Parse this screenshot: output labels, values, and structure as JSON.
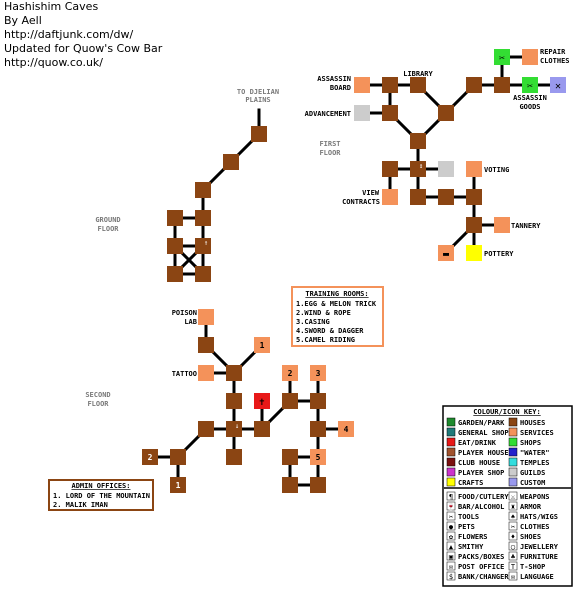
{
  "header": {
    "title": "Hashishim Caves",
    "author": "By Aell",
    "url1": "http://daftjunk.com/dw/",
    "updated": "Updated for Quow's Cow Bar",
    "url2": "http://quow.co.uk/"
  },
  "floors": {
    "first": [
      "FIRST",
      "FLOOR"
    ],
    "ground": [
      "GROUND",
      "FLOOR"
    ],
    "second": [
      "SECOND",
      "FLOOR"
    ],
    "djelian": [
      "TO DJELIAN",
      "PLAINS"
    ]
  },
  "labels": {
    "assassin_board": [
      "ASSASSIN",
      "BOARD"
    ],
    "library": "LIBRARY",
    "repair_clothes": [
      "REPAIR",
      "CLOTHES"
    ],
    "assassin_goods": [
      "ASSASSIN",
      "GOODS"
    ],
    "advancement": "ADVANCEMENT",
    "voting": "VOTING",
    "view_contracts": [
      "VIEW",
      "CONTRACTS"
    ],
    "tannery": "TANNERY",
    "pottery": "POTTERY",
    "poison_lab": [
      "POISON",
      "LAB"
    ],
    "tattoo": "TATTOO",
    "n1": "1",
    "n2": "2",
    "n3": "3",
    "n4": "4",
    "n5": "5"
  },
  "training": {
    "title": "TRAINING ROOMS:",
    "items": [
      "1.EGG & MELON TRICK",
      "2.WIND & ROPE",
      "3.CASING",
      "4.SWORD & DAGGER",
      "5.CAMEL RIDING"
    ]
  },
  "admin": {
    "title": "ADMIN OFFICES:",
    "items": [
      "1. LORD OF THE MOUNTAIN",
      "2. MALIK IMAN"
    ]
  },
  "key": {
    "title": "COLOUR/ICON KEY:",
    "colours": [
      {
        "label": "GARDEN/PARK",
        "color": "#1e8a2e"
      },
      {
        "label": "HOUSES",
        "color": "#8b4513"
      },
      {
        "label": "GENERAL SHOP",
        "color": "#1f7a7a"
      },
      {
        "label": "SERVICES",
        "color": "#f4925a"
      },
      {
        "label": "EAT/DRINK",
        "color": "#e81818"
      },
      {
        "label": "SHOPS",
        "color": "#33dd33"
      },
      {
        "label": "PLAYER HOUSE",
        "color": "#a0522d"
      },
      {
        "label": "\"WATER\"",
        "color": "#2222cc"
      },
      {
        "label": "CLUB HOUSE",
        "color": "#7a1010"
      },
      {
        "label": "TEMPLES",
        "color": "#33dddd"
      },
      {
        "label": "PLAYER SHOP",
        "color": "#cc33cc"
      },
      {
        "label": "GUILDS",
        "color": "#cccccc"
      },
      {
        "label": "CRAFTS",
        "color": "#ffff00"
      },
      {
        "label": "CUSTOM",
        "color": "#9999ee"
      }
    ],
    "icons": [
      "FOOD/CUTLERY",
      "WEAPONS",
      "BAR/ALCOHOL",
      "ARMOR",
      "TOOLS",
      "HATS/WIGS",
      "PETS",
      "CLOTHES",
      "FLOWERS",
      "SHOES",
      "SMITHY",
      "JEWELLERY",
      "PACKS/BOXES",
      "FURNITURE",
      "POST OFFICE",
      "T-SHOP",
      "BANK/CHANGER",
      "LANGUAGE"
    ],
    "icon_names": [
      "fork-knife-icon",
      "sword-icon",
      "glass-icon",
      "armor-icon",
      "tools-icon",
      "hat-icon",
      "paw-icon",
      "shirt-icon",
      "flower-icon",
      "shoe-icon",
      "anvil-icon",
      "ring-icon",
      "box-icon",
      "chair-icon",
      "envelope-icon",
      "t-icon",
      "coin-icon",
      "speech-icon"
    ]
  },
  "colors": {
    "room": "#8b4513",
    "service": "#f4925a",
    "guild": "#cccccc",
    "shop": "#33dd33",
    "custom": "#9999ee",
    "eat": "#e81818",
    "craft": "#ffff00",
    "box_border": "#8b4513",
    "training_border": "#f4925a"
  }
}
